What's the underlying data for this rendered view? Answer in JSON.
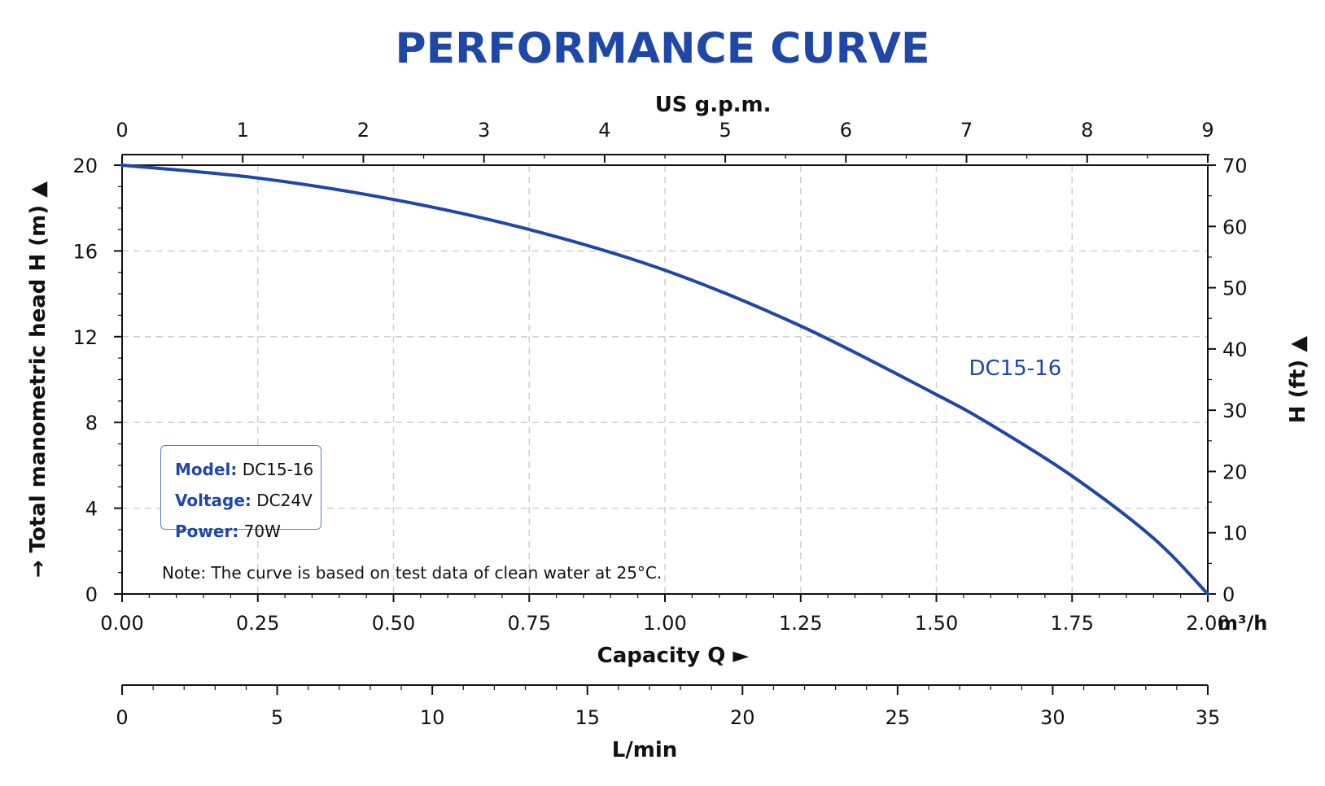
{
  "chart_data": {
    "type": "line",
    "title": "PERFORMANCE CURVE",
    "xlabel": "Capacity Q",
    "xlabel_arrow": "►",
    "x_unit": "m³/h",
    "xlim": [
      0,
      2.0
    ],
    "x_ticks": [
      "0.00",
      "0.25",
      "0.50",
      "0.75",
      "1.00",
      "1.25",
      "1.50",
      "1.75",
      "2.00"
    ],
    "ylabel": "Total manometric head H (m)",
    "ylim": [
      0,
      20
    ],
    "y_ticks": [
      "0",
      "4",
      "8",
      "12",
      "16",
      "20"
    ],
    "top_axis": {
      "label": "US g.p.m.",
      "range": [
        0,
        9
      ],
      "ticks": [
        "0",
        "1",
        "2",
        "3",
        "4",
        "5",
        "6",
        "7",
        "8",
        "9"
      ]
    },
    "right_axis": {
      "label": "H (ft)",
      "range": [
        0,
        70
      ],
      "ticks": [
        "0",
        "10",
        "20",
        "30",
        "40",
        "50",
        "60",
        "70"
      ]
    },
    "bottom_axis": {
      "label": "L/min",
      "range": [
        0,
        35
      ],
      "ticks": [
        "0",
        "5",
        "10",
        "15",
        "20",
        "25",
        "30",
        "35"
      ]
    },
    "grid": true,
    "series": [
      {
        "name": "DC15-16",
        "color": "#1f47a8",
        "x": [
          0,
          0.25,
          0.5,
          0.75,
          1.0,
          1.25,
          1.5,
          1.6,
          1.75,
          1.9,
          2.0
        ],
        "y": [
          20,
          19.4,
          18.4,
          17.0,
          15.1,
          12.5,
          9.3,
          7.9,
          5.5,
          2.6,
          0
        ]
      }
    ]
  },
  "info": {
    "model_label": "Model:",
    "model_value": "DC15-16",
    "voltage_label": "Voltage:",
    "voltage_value": "DC24V",
    "power_label": "Power:",
    "power_value": "70W"
  },
  "note": "Note: The curve is based on test data of clean water at 25°C.",
  "colors": {
    "accent": "#1f47a8",
    "grid": "#cfcfcf",
    "axis": "#111111"
  }
}
